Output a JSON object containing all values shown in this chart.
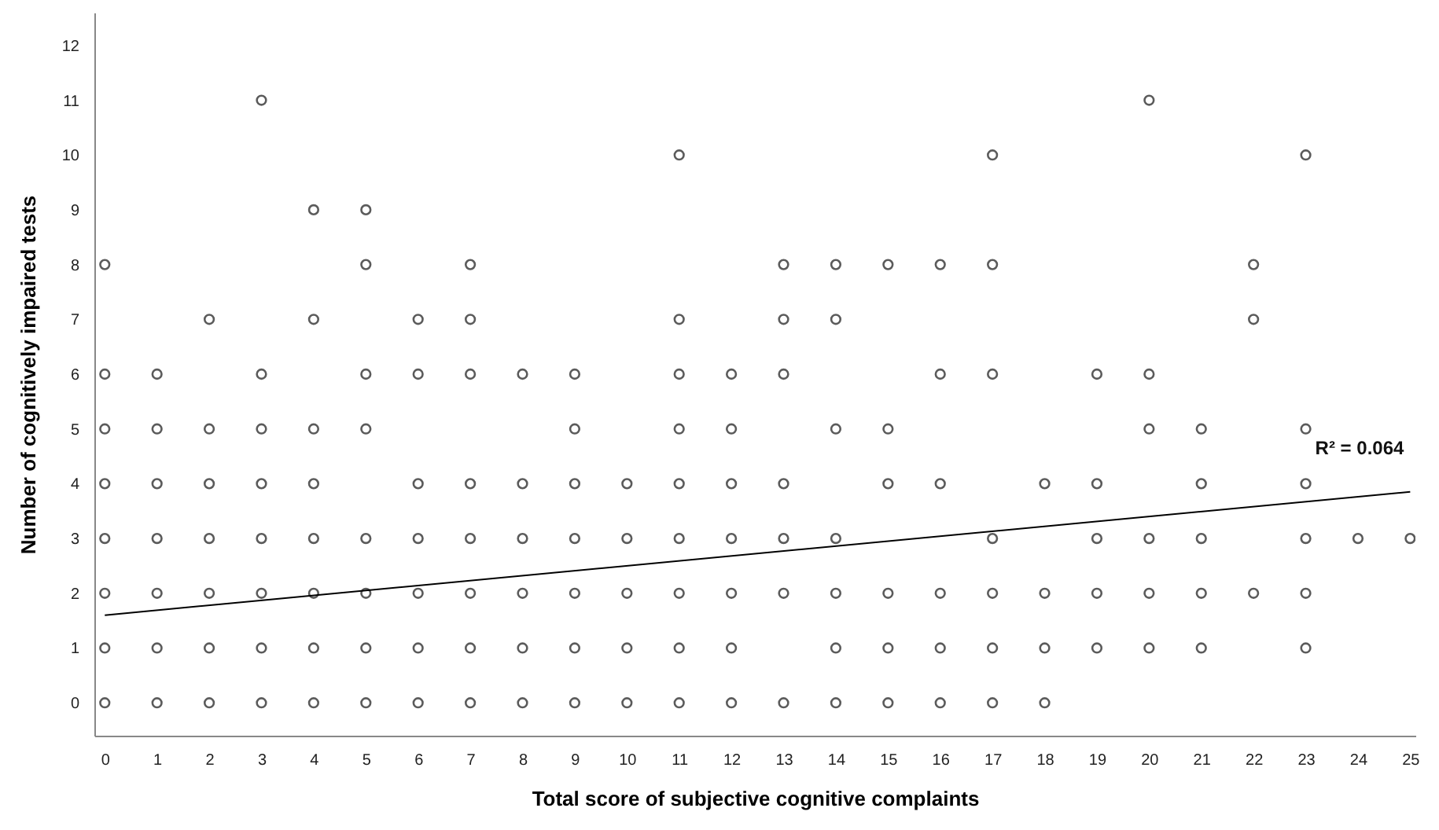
{
  "chart_data": {
    "type": "scatter",
    "xlabel": "Total score of subjective cognitive complaints",
    "ylabel": "Number of cognitively impaired tests",
    "xlim": [
      -0.2,
      25.1
    ],
    "ylim": [
      -0.6,
      12.6
    ],
    "xticks": [
      0,
      1,
      2,
      3,
      4,
      5,
      6,
      7,
      8,
      9,
      10,
      11,
      12,
      13,
      14,
      15,
      16,
      17,
      18,
      19,
      20,
      21,
      22,
      23,
      24,
      25
    ],
    "yticks": [
      0,
      1,
      2,
      3,
      4,
      5,
      6,
      7,
      8,
      9,
      10,
      11,
      12
    ],
    "grid": false,
    "annotations": [
      "R² = 0.064"
    ],
    "series": [
      {
        "marker": "circle",
        "color": "#333333",
        "x": [
          0,
          0,
          0,
          0,
          0,
          0,
          0,
          0,
          1,
          1,
          1,
          1,
          1,
          1,
          1,
          2,
          2,
          2,
          2,
          2,
          2,
          2,
          3,
          3,
          3,
          3,
          3,
          3,
          3,
          3,
          4,
          4,
          4,
          4,
          4,
          4,
          4,
          4,
          5,
          5,
          5,
          5,
          5,
          5,
          5,
          5,
          6,
          6,
          6,
          6,
          6,
          6,
          6,
          7,
          7,
          7,
          7,
          7,
          7,
          7,
          7,
          8,
          8,
          8,
          8,
          8,
          8,
          9,
          9,
          9,
          9,
          9,
          9,
          9,
          10,
          10,
          10,
          10,
          10,
          11,
          11,
          11,
          11,
          11,
          11,
          11,
          11,
          11,
          12,
          12,
          12,
          12,
          12,
          12,
          12,
          13,
          13,
          13,
          13,
          13,
          13,
          13,
          14,
          14,
          14,
          14,
          14,
          14,
          14,
          15,
          15,
          15,
          15,
          15,
          15,
          16,
          16,
          16,
          16,
          16,
          16,
          17,
          17,
          17,
          17,
          17,
          17,
          17,
          18,
          18,
          18,
          18,
          19,
          19,
          19,
          19,
          19,
          20,
          20,
          20,
          20,
          20,
          20,
          21,
          21,
          21,
          21,
          21,
          22,
          22,
          22,
          23,
          23,
          23,
          23,
          23,
          23,
          24,
          25
        ],
        "values": [
          8,
          6,
          5,
          4,
          3,
          2,
          1,
          0,
          6,
          5,
          4,
          3,
          2,
          1,
          0,
          7,
          5,
          4,
          3,
          2,
          1,
          0,
          11,
          6,
          5,
          4,
          3,
          2,
          1,
          0,
          9,
          7,
          5,
          4,
          3,
          2,
          1,
          0,
          9,
          8,
          6,
          5,
          3,
          2,
          1,
          0,
          7,
          6,
          4,
          3,
          2,
          1,
          0,
          8,
          7,
          6,
          4,
          3,
          2,
          1,
          0,
          6,
          4,
          3,
          2,
          1,
          0,
          6,
          5,
          4,
          3,
          2,
          1,
          0,
          4,
          3,
          2,
          1,
          0,
          10,
          7,
          6,
          5,
          4,
          3,
          2,
          1,
          0,
          6,
          5,
          4,
          3,
          2,
          1,
          0,
          8,
          7,
          6,
          4,
          3,
          2,
          0,
          8,
          7,
          5,
          3,
          2,
          1,
          0,
          8,
          5,
          4,
          2,
          1,
          0,
          8,
          6,
          4,
          2,
          1,
          0,
          10,
          8,
          6,
          3,
          2,
          1,
          0,
          4,
          2,
          1,
          0,
          6,
          4,
          3,
          2,
          1,
          11,
          6,
          5,
          3,
          2,
          1,
          5,
          4,
          3,
          2,
          1,
          8,
          7,
          2,
          10,
          5,
          4,
          3,
          2,
          1,
          3,
          3
        ]
      },
      {
        "type": "line",
        "color": "#000000",
        "x": [
          0,
          25
        ],
        "values": [
          1.6,
          3.85
        ]
      }
    ]
  }
}
